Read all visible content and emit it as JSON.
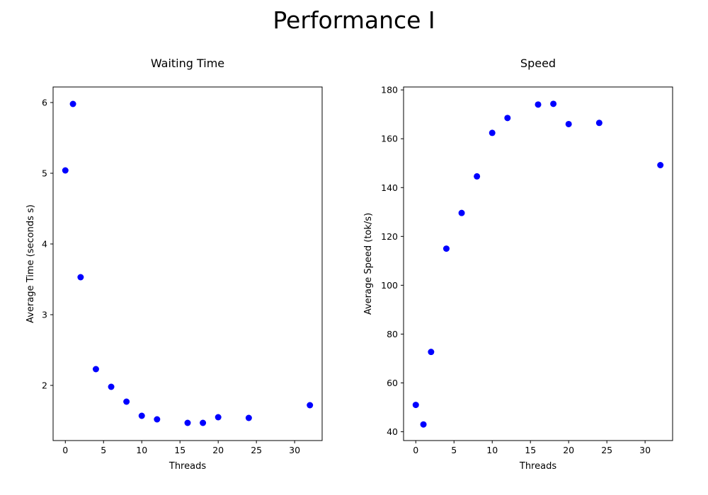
{
  "figure_title": "Performance I",
  "chart_data": [
    {
      "type": "scatter",
      "title": "Waiting Time",
      "xlabel": "Threads",
      "ylabel": "Average Time (seconds s)",
      "xlim": [
        -1.6,
        33.6
      ],
      "ylim": [
        1.22,
        6.22
      ],
      "xticks": [
        0,
        5,
        10,
        15,
        20,
        25,
        30
      ],
      "yticks": [
        2,
        3,
        4,
        5,
        6
      ],
      "marker_color": "#0000ff",
      "points": {
        "x": [
          0,
          1,
          2,
          4,
          6,
          8,
          10,
          12,
          16,
          18,
          20,
          24,
          32
        ],
        "y": [
          5.04,
          5.98,
          3.53,
          2.23,
          1.98,
          1.77,
          1.57,
          1.52,
          1.47,
          1.47,
          1.55,
          1.54,
          1.72
        ]
      }
    },
    {
      "type": "scatter",
      "title": "Speed",
      "xlabel": "Threads",
      "ylabel": "Average Speed (tok/s)",
      "xlim": [
        -1.6,
        33.6
      ],
      "ylim": [
        36.4,
        181.2
      ],
      "xticks": [
        0,
        5,
        10,
        15,
        20,
        25,
        30
      ],
      "yticks": [
        40,
        60,
        80,
        100,
        120,
        140,
        160,
        180
      ],
      "marker_color": "#0000ff",
      "points": {
        "x": [
          0,
          1,
          2,
          4,
          6,
          8,
          10,
          12,
          16,
          18,
          20,
          24,
          32
        ],
        "y": [
          51,
          43,
          72.7,
          115,
          129.6,
          144.6,
          162.4,
          168.5,
          174,
          174.3,
          166,
          166.5,
          149.2
        ]
      }
    }
  ]
}
